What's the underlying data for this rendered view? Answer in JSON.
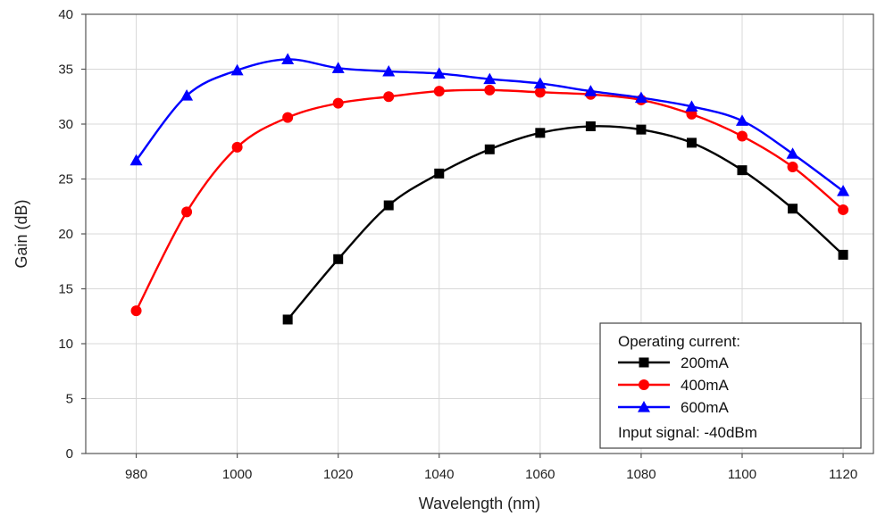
{
  "chart_data": {
    "type": "line",
    "title": "",
    "xlabel": "Wavelength (nm)",
    "ylabel": "Gain (dB)",
    "xlim": [
      970,
      1126
    ],
    "ylim": [
      0,
      40
    ],
    "x_ticks": [
      980,
      1000,
      1020,
      1040,
      1060,
      1080,
      1100,
      1120
    ],
    "y_ticks": [
      0,
      5,
      10,
      15,
      20,
      25,
      30,
      35,
      40
    ],
    "grid": true,
    "legend": {
      "placement": "bottom-right",
      "header": "Operating current:",
      "footer": "Input signal: -40dBm"
    },
    "series": [
      {
        "name": "200mA",
        "color": "#000000",
        "marker": "square",
        "x": [
          1010,
          1020,
          1030,
          1040,
          1050,
          1060,
          1070,
          1080,
          1090,
          1100,
          1110,
          1120
        ],
        "y": [
          12.2,
          17.7,
          22.6,
          25.5,
          27.7,
          29.2,
          29.8,
          29.5,
          28.3,
          25.8,
          22.3,
          18.1
        ]
      },
      {
        "name": "400mA",
        "color": "#ff0000",
        "marker": "circle",
        "x": [
          980,
          990,
          1000,
          1010,
          1020,
          1030,
          1040,
          1050,
          1060,
          1070,
          1080,
          1090,
          1100,
          1110,
          1120
        ],
        "y": [
          13.0,
          22.0,
          27.9,
          30.6,
          31.9,
          32.5,
          33.0,
          33.1,
          32.9,
          32.7,
          32.2,
          30.9,
          28.9,
          26.1,
          22.2
        ]
      },
      {
        "name": "600mA",
        "color": "#0000ff",
        "marker": "triangle",
        "x": [
          980,
          990,
          1000,
          1010,
          1020,
          1030,
          1040,
          1050,
          1060,
          1070,
          1080,
          1090,
          1100,
          1110,
          1120
        ],
        "y": [
          26.7,
          32.6,
          34.9,
          35.9,
          35.1,
          34.8,
          34.6,
          34.1,
          33.7,
          33.0,
          32.4,
          31.6,
          30.3,
          27.3,
          23.9
        ]
      }
    ]
  }
}
